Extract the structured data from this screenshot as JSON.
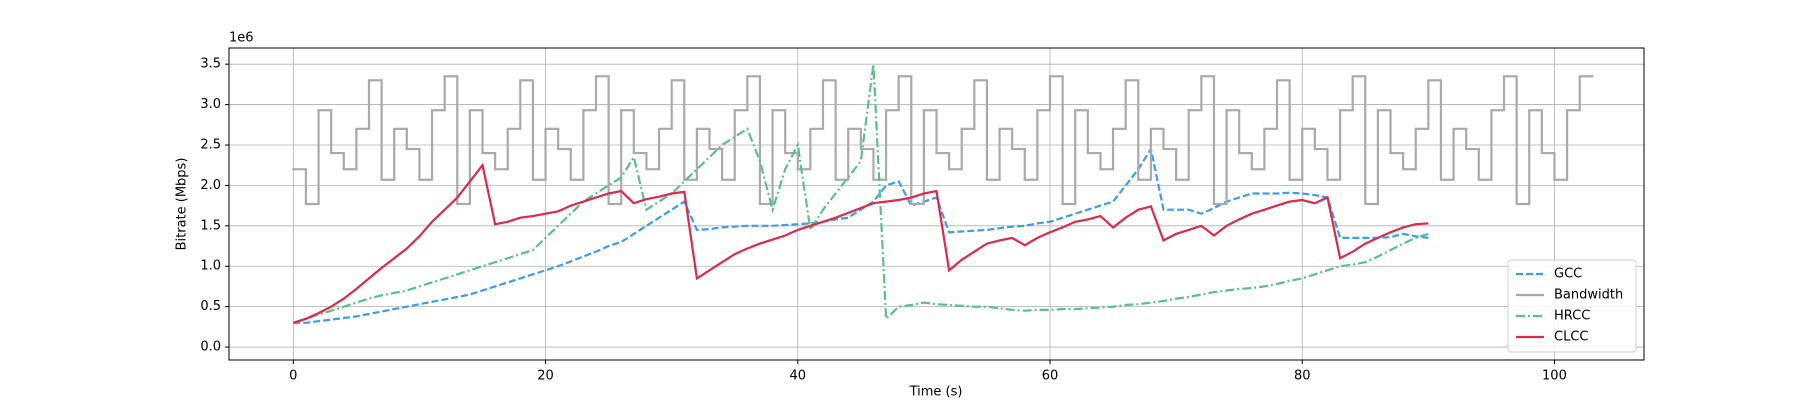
{
  "chart_data": {
    "type": "line",
    "x_label": "Time (s)",
    "y_label": "Bitrate (Mbps)",
    "offset_text": "1e6",
    "xlim": [
      -5.1,
      107.1
    ],
    "xticks": [
      0,
      20,
      40,
      60,
      80,
      100
    ],
    "ylim": [
      -0.16,
      3.7
    ],
    "yticks": [
      {
        "value": 0,
        "label": "0.0"
      },
      0.5,
      {
        "value": 1,
        "label": "1.0"
      },
      1.5,
      {
        "value": 2,
        "label": "2.0"
      },
      2.5,
      {
        "value": 3,
        "label": "3.0"
      },
      3.5
    ],
    "grid": true,
    "legend": "lower right",
    "series": [
      {
        "name": "GCC",
        "color": "#3d9cf0",
        "style": "dashed",
        "x": [
          0,
          1,
          2,
          3,
          4,
          5,
          6,
          7,
          8,
          9,
          10,
          11,
          12,
          13,
          14,
          15,
          16,
          17,
          18,
          19,
          20,
          21,
          22,
          23,
          24,
          25,
          26,
          27,
          28,
          29,
          30,
          31,
          32,
          33,
          34,
          35,
          36,
          37,
          38,
          39,
          40,
          41,
          42,
          43,
          44,
          45,
          46,
          47,
          48,
          49,
          50,
          51,
          52,
          53,
          54,
          55,
          56,
          57,
          58,
          59,
          60,
          61,
          62,
          63,
          64,
          65,
          66,
          67,
          68,
          69,
          70,
          71,
          72,
          73,
          74,
          75,
          76,
          77,
          78,
          79,
          80,
          81,
          82,
          83,
          84,
          85,
          86,
          87,
          88,
          89,
          90
        ],
        "values": [
          0.3,
          0.3,
          0.32,
          0.34,
          0.36,
          0.38,
          0.41,
          0.44,
          0.47,
          0.5,
          0.53,
          0.56,
          0.59,
          0.62,
          0.65,
          0.7,
          0.75,
          0.8,
          0.85,
          0.9,
          0.95,
          1.0,
          1.06,
          1.12,
          1.18,
          1.25,
          1.3,
          1.4,
          1.5,
          1.6,
          1.7,
          1.8,
          1.45,
          1.46,
          1.48,
          1.49,
          1.5,
          1.5,
          1.5,
          1.51,
          1.52,
          1.53,
          1.55,
          1.58,
          1.6,
          1.7,
          1.8,
          2.0,
          2.05,
          1.75,
          1.8,
          1.85,
          1.42,
          1.43,
          1.44,
          1.45,
          1.47,
          1.49,
          1.5,
          1.53,
          1.55,
          1.6,
          1.65,
          1.7,
          1.75,
          1.8,
          2.0,
          2.2,
          2.45,
          1.7,
          1.7,
          1.7,
          1.65,
          1.72,
          1.8,
          1.85,
          1.9,
          1.9,
          1.9,
          1.91,
          1.9,
          1.88,
          1.85,
          1.35,
          1.35,
          1.35,
          1.35,
          1.36,
          1.4,
          1.37,
          1.35
        ]
      },
      {
        "name": "Bandwidth",
        "color": "#aaaaaa",
        "style": "steps",
        "x": [
          0,
          1,
          2,
          3,
          4,
          5,
          6,
          7,
          8,
          9,
          10,
          11,
          12,
          13,
          14,
          15,
          16,
          17,
          18,
          19,
          20,
          21,
          22,
          23,
          24,
          25,
          26,
          27,
          28,
          29,
          30,
          31,
          32,
          33,
          34,
          35,
          36,
          37,
          38,
          39,
          40,
          41,
          42,
          43,
          44,
          45,
          46,
          47,
          48,
          49,
          50,
          51,
          52,
          53,
          54,
          55,
          56,
          57,
          58,
          59,
          60,
          61,
          62,
          63,
          64,
          65,
          66,
          67,
          68,
          69,
          70,
          71,
          72,
          73,
          74,
          75,
          76,
          77,
          78,
          79,
          80,
          81,
          82,
          83,
          84,
          85,
          86,
          87,
          88,
          89,
          90,
          91,
          92,
          93,
          94,
          95,
          96,
          97,
          98,
          99,
          100,
          101,
          102
        ],
        "values": [
          2.2,
          1.77,
          2.93,
          2.4,
          2.2,
          2.7,
          3.3,
          2.07,
          2.7,
          2.45,
          2.07,
          2.93,
          3.35,
          1.77,
          2.93,
          2.4,
          2.2,
          2.7,
          3.3,
          2.07,
          2.7,
          2.45,
          2.07,
          2.93,
          3.35,
          1.77,
          2.93,
          2.4,
          2.2,
          2.7,
          3.3,
          2.07,
          2.7,
          2.45,
          2.07,
          2.93,
          3.35,
          1.77,
          2.93,
          2.4,
          2.2,
          2.7,
          3.3,
          2.07,
          2.7,
          2.45,
          2.07,
          2.93,
          3.35,
          1.77,
          2.93,
          2.4,
          2.2,
          2.7,
          3.3,
          2.07,
          2.7,
          2.45,
          2.07,
          2.93,
          3.35,
          1.77,
          2.93,
          2.4,
          2.2,
          2.7,
          3.3,
          2.07,
          2.7,
          2.45,
          2.07,
          2.93,
          3.35,
          1.77,
          2.93,
          2.4,
          2.2,
          2.7,
          3.3,
          2.07,
          2.7,
          2.45,
          2.07,
          2.93,
          3.35,
          1.77,
          2.93,
          2.4,
          2.2,
          2.7,
          3.3,
          2.07,
          2.7,
          2.45,
          2.07,
          2.93,
          3.35,
          1.77,
          2.93,
          2.4,
          2.07,
          2.93,
          3.35
        ]
      },
      {
        "name": "HRCC",
        "color": "#5bbf8a",
        "style": "dashdot",
        "x": [
          0,
          1,
          2,
          3,
          4,
          5,
          6,
          7,
          8,
          9,
          10,
          11,
          12,
          13,
          14,
          15,
          16,
          17,
          18,
          19,
          20,
          21,
          22,
          23,
          24,
          25,
          26,
          27,
          28,
          29,
          30,
          31,
          32,
          33,
          34,
          35,
          36,
          37,
          38,
          39,
          40,
          41,
          42,
          43,
          44,
          45,
          46,
          47,
          48,
          49,
          50,
          51,
          52,
          53,
          54,
          55,
          56,
          57,
          58,
          59,
          60,
          61,
          62,
          63,
          64,
          65,
          66,
          67,
          68,
          69,
          70,
          71,
          72,
          73,
          74,
          75,
          76,
          77,
          78,
          79,
          80,
          81,
          82,
          83,
          84,
          85,
          86,
          87,
          88,
          89,
          90
        ],
        "values": [
          0.3,
          0.35,
          0.4,
          0.45,
          0.5,
          0.55,
          0.6,
          0.64,
          0.67,
          0.7,
          0.75,
          0.8,
          0.85,
          0.9,
          0.95,
          1.0,
          1.05,
          1.1,
          1.15,
          1.2,
          1.35,
          1.5,
          1.65,
          1.8,
          1.9,
          2.0,
          2.1,
          2.35,
          1.7,
          1.8,
          1.9,
          2.05,
          2.2,
          2.35,
          2.5,
          2.6,
          2.7,
          2.3,
          1.7,
          2.2,
          2.5,
          1.45,
          1.7,
          1.9,
          2.1,
          2.3,
          3.5,
          0.35,
          0.5,
          0.52,
          0.55,
          0.53,
          0.52,
          0.51,
          0.5,
          0.5,
          0.48,
          0.46,
          0.45,
          0.46,
          0.46,
          0.47,
          0.47,
          0.48,
          0.49,
          0.5,
          0.52,
          0.53,
          0.55,
          0.57,
          0.6,
          0.62,
          0.65,
          0.68,
          0.7,
          0.72,
          0.73,
          0.75,
          0.78,
          0.82,
          0.85,
          0.9,
          0.95,
          1.0,
          1.02,
          1.05,
          1.12,
          1.2,
          1.28,
          1.35,
          1.4
        ]
      },
      {
        "name": "CLCC",
        "color": "#dc2a4c",
        "style": "solid",
        "x": [
          0,
          1,
          2,
          3,
          4,
          5,
          6,
          7,
          8,
          9,
          10,
          11,
          12,
          13,
          14,
          15,
          16,
          17,
          18,
          19,
          20,
          21,
          22,
          23,
          24,
          25,
          26,
          27,
          28,
          29,
          30,
          31,
          32,
          33,
          34,
          35,
          36,
          37,
          38,
          39,
          40,
          41,
          42,
          43,
          44,
          45,
          46,
          47,
          48,
          49,
          50,
          51,
          52,
          53,
          54,
          55,
          56,
          57,
          58,
          59,
          60,
          61,
          62,
          63,
          64,
          65,
          66,
          67,
          68,
          69,
          70,
          71,
          72,
          73,
          74,
          75,
          76,
          77,
          78,
          79,
          80,
          81,
          82,
          83,
          84,
          85,
          86,
          87,
          88,
          89,
          90
        ],
        "values": [
          0.3,
          0.35,
          0.42,
          0.5,
          0.6,
          0.72,
          0.85,
          0.98,
          1.1,
          1.22,
          1.37,
          1.55,
          1.7,
          1.85,
          2.05,
          2.25,
          1.52,
          1.55,
          1.6,
          1.62,
          1.65,
          1.68,
          1.75,
          1.8,
          1.85,
          1.9,
          1.93,
          1.78,
          1.83,
          1.86,
          1.9,
          1.92,
          0.85,
          0.95,
          1.05,
          1.15,
          1.22,
          1.28,
          1.33,
          1.38,
          1.45,
          1.5,
          1.55,
          1.6,
          1.66,
          1.72,
          1.78,
          1.8,
          1.82,
          1.85,
          1.9,
          1.93,
          0.95,
          1.08,
          1.18,
          1.28,
          1.32,
          1.35,
          1.26,
          1.35,
          1.42,
          1.48,
          1.55,
          1.58,
          1.62,
          1.48,
          1.6,
          1.7,
          1.74,
          1.32,
          1.4,
          1.45,
          1.5,
          1.38,
          1.5,
          1.58,
          1.65,
          1.7,
          1.75,
          1.8,
          1.82,
          1.78,
          1.85,
          1.1,
          1.18,
          1.28,
          1.35,
          1.42,
          1.48,
          1.52,
          1.53
        ]
      }
    ]
  }
}
